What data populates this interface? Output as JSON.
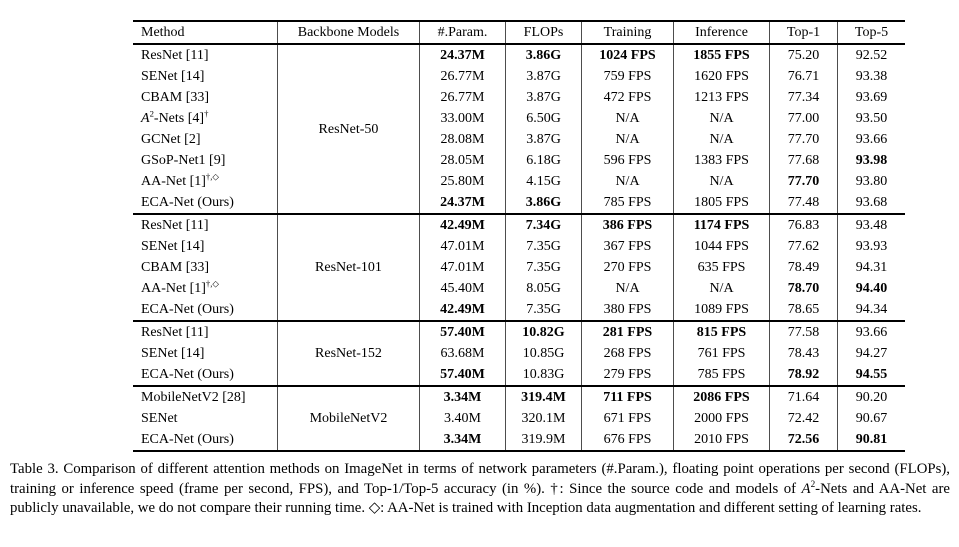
{
  "table": {
    "headers": [
      "Method",
      "Backbone Models",
      "#.Param.",
      "FLOPs",
      "Training",
      "Inference",
      "Top-1",
      "Top-5"
    ],
    "groups": [
      {
        "backbone": "ResNet-50",
        "rows": [
          {
            "method": [
              {
                "t": "ResNet [11]"
              }
            ],
            "cells": [
              [
                "24.37M",
                1
              ],
              [
                "3.86G",
                1
              ],
              [
                "1024 FPS",
                1
              ],
              [
                "1855 FPS",
                1
              ],
              [
                "75.20",
                0
              ],
              [
                "92.52",
                0
              ]
            ]
          },
          {
            "method": [
              {
                "t": "SENet [14]"
              }
            ],
            "cells": [
              [
                "26.77M",
                0
              ],
              [
                "3.87G",
                0
              ],
              [
                "759 FPS",
                0
              ],
              [
                "1620 FPS",
                0
              ],
              [
                "76.71",
                0
              ],
              [
                "93.38",
                0
              ]
            ]
          },
          {
            "method": [
              {
                "t": "CBAM [33]"
              }
            ],
            "cells": [
              [
                "26.77M",
                0
              ],
              [
                "3.87G",
                0
              ],
              [
                "472 FPS",
                0
              ],
              [
                "1213 FPS",
                0
              ],
              [
                "77.34",
                0
              ],
              [
                "93.69",
                0
              ]
            ]
          },
          {
            "method": [
              {
                "t": "A",
                "i": 1
              },
              {
                "t": "2",
                "s": 1
              },
              {
                "t": "-Nets [4]"
              },
              {
                "t": "†",
                "s": 1
              }
            ],
            "cells": [
              [
                "33.00M",
                0
              ],
              [
                "6.50G",
                0
              ],
              [
                "N/A",
                0
              ],
              [
                "N/A",
                0
              ],
              [
                "77.00",
                0
              ],
              [
                "93.50",
                0
              ]
            ]
          },
          {
            "method": [
              {
                "t": "GCNet [2]"
              }
            ],
            "cells": [
              [
                "28.08M",
                0
              ],
              [
                "3.87G",
                0
              ],
              [
                "N/A",
                0
              ],
              [
                "N/A",
                0
              ],
              [
                "77.70",
                0
              ],
              [
                "93.66",
                0
              ]
            ]
          },
          {
            "method": [
              {
                "t": "GSoP-Net1 [9]"
              }
            ],
            "cells": [
              [
                "28.05M",
                0
              ],
              [
                "6.18G",
                0
              ],
              [
                "596 FPS",
                0
              ],
              [
                "1383 FPS",
                0
              ],
              [
                "77.68",
                0
              ],
              [
                "93.98",
                1
              ]
            ]
          },
          {
            "method": [
              {
                "t": "AA-Net [1]"
              },
              {
                "t": "†,◇",
                "s": 1
              }
            ],
            "cells": [
              [
                "25.80M",
                0
              ],
              [
                "4.15G",
                0
              ],
              [
                "N/A",
                0
              ],
              [
                "N/A",
                0
              ],
              [
                "77.70",
                1
              ],
              [
                "93.80",
                0
              ]
            ]
          },
          {
            "method": [
              {
                "t": "ECA-Net (Ours)"
              }
            ],
            "cells": [
              [
                "24.37M",
                1
              ],
              [
                "3.86G",
                1
              ],
              [
                "785 FPS",
                0
              ],
              [
                "1805 FPS",
                0
              ],
              [
                "77.48",
                0
              ],
              [
                "93.68",
                0
              ]
            ]
          }
        ]
      },
      {
        "backbone": "ResNet-101",
        "rows": [
          {
            "method": [
              {
                "t": "ResNet [11]"
              }
            ],
            "cells": [
              [
                "42.49M",
                1
              ],
              [
                "7.34G",
                1
              ],
              [
                "386 FPS",
                1
              ],
              [
                "1174 FPS",
                1
              ],
              [
                "76.83",
                0
              ],
              [
                "93.48",
                0
              ]
            ]
          },
          {
            "method": [
              {
                "t": "SENet [14]"
              }
            ],
            "cells": [
              [
                "47.01M",
                0
              ],
              [
                "7.35G",
                0
              ],
              [
                "367 FPS",
                0
              ],
              [
                "1044 FPS",
                0
              ],
              [
                "77.62",
                0
              ],
              [
                "93.93",
                0
              ]
            ]
          },
          {
            "method": [
              {
                "t": "CBAM [33]"
              }
            ],
            "cells": [
              [
                "47.01M",
                0
              ],
              [
                "7.35G",
                0
              ],
              [
                "270 FPS",
                0
              ],
              [
                "635 FPS",
                0
              ],
              [
                "78.49",
                0
              ],
              [
                "94.31",
                0
              ]
            ]
          },
          {
            "method": [
              {
                "t": "AA-Net [1]"
              },
              {
                "t": "†,◇",
                "s": 1
              }
            ],
            "cells": [
              [
                "45.40M",
                0
              ],
              [
                "8.05G",
                0
              ],
              [
                "N/A",
                0
              ],
              [
                "N/A",
                0
              ],
              [
                "78.70",
                1
              ],
              [
                "94.40",
                1
              ]
            ]
          },
          {
            "method": [
              {
                "t": "ECA-Net (Ours)"
              }
            ],
            "cells": [
              [
                "42.49M",
                1
              ],
              [
                "7.35G",
                0
              ],
              [
                "380 FPS",
                0
              ],
              [
                "1089 FPS",
                0
              ],
              [
                "78.65",
                0
              ],
              [
                "94.34",
                0
              ]
            ]
          }
        ]
      },
      {
        "backbone": "ResNet-152",
        "rows": [
          {
            "method": [
              {
                "t": "ResNet [11]"
              }
            ],
            "cells": [
              [
                "57.40M",
                1
              ],
              [
                "10.82G",
                1
              ],
              [
                "281 FPS",
                1
              ],
              [
                "815 FPS",
                1
              ],
              [
                "77.58",
                0
              ],
              [
                "93.66",
                0
              ]
            ]
          },
          {
            "method": [
              {
                "t": "SENet [14]"
              }
            ],
            "cells": [
              [
                "63.68M",
                0
              ],
              [
                "10.85G",
                0
              ],
              [
                "268 FPS",
                0
              ],
              [
                "761 FPS",
                0
              ],
              [
                "78.43",
                0
              ],
              [
                "94.27",
                0
              ]
            ]
          },
          {
            "method": [
              {
                "t": "ECA-Net (Ours)"
              }
            ],
            "cells": [
              [
                "57.40M",
                1
              ],
              [
                "10.83G",
                0
              ],
              [
                "279 FPS",
                0
              ],
              [
                "785 FPS",
                0
              ],
              [
                "78.92",
                1
              ],
              [
                "94.55",
                1
              ]
            ]
          }
        ]
      },
      {
        "backbone": "MobileNetV2",
        "rows": [
          {
            "method": [
              {
                "t": "MobileNetV2 [28]"
              }
            ],
            "cells": [
              [
                "3.34M",
                1
              ],
              [
                "319.4M",
                1
              ],
              [
                "711 FPS",
                1
              ],
              [
                "2086 FPS",
                1
              ],
              [
                "71.64",
                0
              ],
              [
                "90.20",
                0
              ]
            ]
          },
          {
            "method": [
              {
                "t": "SENet"
              }
            ],
            "cells": [
              [
                "3.40M",
                0
              ],
              [
                "320.1M",
                0
              ],
              [
                "671 FPS",
                0
              ],
              [
                "2000 FPS",
                0
              ],
              [
                "72.42",
                0
              ],
              [
                "90.67",
                0
              ]
            ]
          },
          {
            "method": [
              {
                "t": "ECA-Net (Ours)"
              }
            ],
            "cells": [
              [
                "3.34M",
                1
              ],
              [
                "319.9M",
                0
              ],
              [
                "676 FPS",
                0
              ],
              [
                "2010 FPS",
                0
              ],
              [
                "72.56",
                1
              ],
              [
                "90.81",
                1
              ]
            ]
          }
        ]
      }
    ]
  },
  "caption": {
    "segments": [
      {
        "t": "Table 3. Comparison of different attention methods on ImageNet in terms of network parameters (#.Param.), floating point operations per second (FLOPs), training or inference speed (frame per second, FPS), and Top-1/Top-5 accuracy (in %). †: Since the source code and models of "
      },
      {
        "t": "A",
        "i": 1
      },
      {
        "t": "2",
        "s": 1
      },
      {
        "t": "-Nets and AA-Net are publicly unavailable, we do not compare their running time. ◇: AA-Net is trained with Inception data augmentation and different setting of learning rates."
      }
    ]
  }
}
